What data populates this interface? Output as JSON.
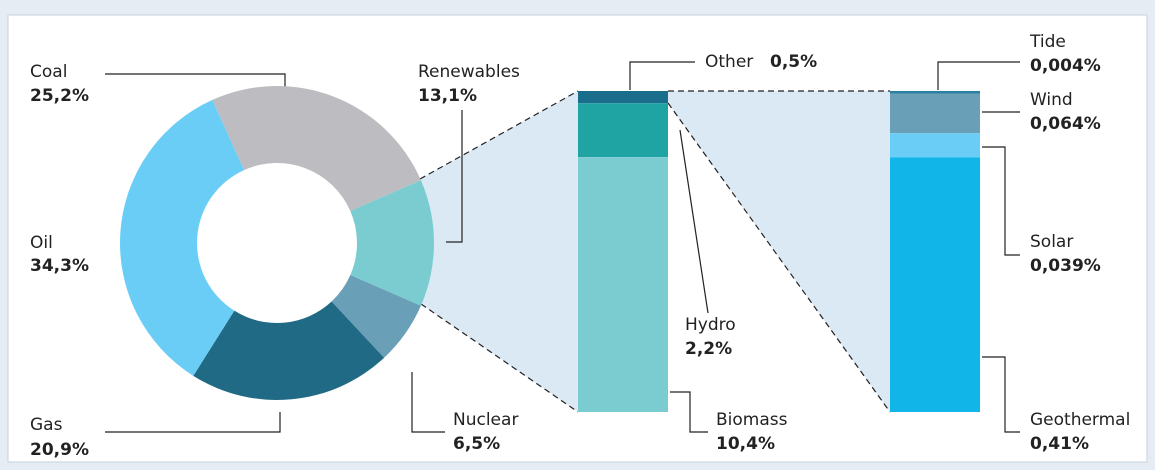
{
  "chart_data": [
    {
      "type": "donut",
      "categories": [
        "Coal",
        "Renewables",
        "Nuclear",
        "Gas",
        "Oil"
      ],
      "values": [
        25.2,
        13.1,
        6.5,
        20.9,
        34.3
      ],
      "value_labels": [
        "25,2%",
        "13,1%",
        "6,5%",
        "20,9%",
        "34,3%"
      ],
      "colors": [
        "#bdbdc1",
        "#7accd0",
        "#6a9fb8",
        "#216a85",
        "#6acdf5"
      ]
    },
    {
      "type": "bar",
      "categories": [
        "Other",
        "Hydro",
        "Biomass"
      ],
      "values": [
        0.5,
        2.2,
        10.4
      ],
      "value_labels": [
        "0,5%",
        "2,2%",
        "10,4%"
      ],
      "colors": [
        "#1a6e8c",
        "#1fa3a3",
        "#7accd0"
      ]
    },
    {
      "type": "bar",
      "categories": [
        "Tide",
        "Wind",
        "Solar",
        "Geothermal"
      ],
      "values": [
        0.004,
        0.064,
        0.039,
        0.41
      ],
      "value_labels": [
        "0,004%",
        "0,064%",
        "0,039%",
        "0,41%"
      ],
      "colors": [
        "#2b7fa0",
        "#6a9fb8",
        "#6acdf5",
        "#12b5e8"
      ]
    }
  ]
}
